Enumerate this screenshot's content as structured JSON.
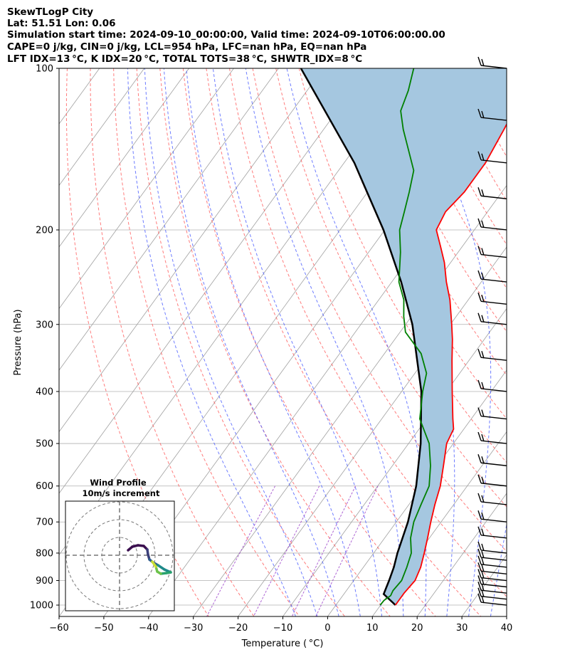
{
  "header": {
    "line1": "SkewTLogP City",
    "line2": "Lat: 51.51   Lon: 0.06",
    "line3": "Simulation start time: 2024-09-10_00:00:00, Valid time: 2024-09-10T06:00:00.00",
    "line4": "CAPE=0 j/kg, CIN=0 j/kg, LCL=954 hPa, LFC=nan hPa, EQ=nan hPa",
    "line5": "LFT IDX=13 °C, K IDX=20 °C, TOTAL TOTS=38 °C, SHWTR_IDX=8 °C"
  },
  "colors": {
    "temperature": "#ff0000",
    "dewpoint": "#008000",
    "parcel": "#000000",
    "cin_fill": "#a5c7e0",
    "dry_adiabat": "#ff5050",
    "moist_adiabat": "#4a5cff",
    "mixing_ratio": "#9a3fc9",
    "isotherm": "#a0a0a0",
    "grid": "#b0b0b0"
  },
  "chart_data": {
    "type": "line",
    "xlabel": "Temperature ( °C)",
    "ylabel": "Pressure (hPa)",
    "xlim": [
      -60,
      40
    ],
    "ylim": [
      1050,
      100
    ],
    "yscale": "log",
    "skew": true,
    "x_ticks": [
      "−60",
      "−50",
      "−40",
      "−30",
      "−20",
      "−10",
      "0",
      "10",
      "20",
      "30",
      "40"
    ],
    "x_tick_values": [
      -60,
      -50,
      -40,
      -30,
      -20,
      -10,
      0,
      10,
      20,
      30,
      40
    ],
    "y_ticks": [
      "100",
      "200",
      "300",
      "400",
      "500",
      "600",
      "700",
      "800",
      "900",
      "1000"
    ],
    "y_tick_values": [
      100,
      200,
      300,
      400,
      500,
      600,
      700,
      800,
      900,
      1000
    ],
    "series": [
      {
        "key": "temperature",
        "points": [
          [
            1000,
            13.3
          ],
          [
            950,
            13.3
          ],
          [
            900,
            13.7
          ],
          [
            850,
            12.8
          ],
          [
            800,
            11.3
          ],
          [
            750,
            9.6
          ],
          [
            700,
            7.7
          ],
          [
            650,
            5.8
          ],
          [
            600,
            4.0
          ],
          [
            550,
            1.4
          ],
          [
            500,
            -1.5
          ],
          [
            470,
            -2.3
          ],
          [
            450,
            -4.1
          ],
          [
            400,
            -8.7
          ],
          [
            350,
            -13.8
          ],
          [
            320,
            -17.1
          ],
          [
            300,
            -19.7
          ],
          [
            270,
            -24.1
          ],
          [
            250,
            -27.8
          ],
          [
            230,
            -31.4
          ],
          [
            215,
            -34.8
          ],
          [
            200,
            -38.5
          ],
          [
            185,
            -39.4
          ],
          [
            170,
            -38.4
          ],
          [
            150,
            -38.4
          ],
          [
            130,
            -39.7
          ],
          [
            115,
            -41.0
          ],
          [
            100,
            -43.8
          ]
        ]
      },
      {
        "key": "dewpoint",
        "points": [
          [
            1000,
            9.9
          ],
          [
            980,
            10.0
          ],
          [
            960,
            10.7
          ],
          [
            940,
            10.4
          ],
          [
            900,
            10.7
          ],
          [
            850,
            9.7
          ],
          [
            800,
            8.4
          ],
          [
            750,
            5.8
          ],
          [
            700,
            3.9
          ],
          [
            650,
            2.7
          ],
          [
            600,
            1.5
          ],
          [
            550,
            -1.5
          ],
          [
            500,
            -5.4
          ],
          [
            450,
            -11.5
          ],
          [
            400,
            -15.3
          ],
          [
            370,
            -17.4
          ],
          [
            340,
            -21.8
          ],
          [
            310,
            -28.8
          ],
          [
            290,
            -31.7
          ],
          [
            270,
            -34.4
          ],
          [
            250,
            -38.4
          ],
          [
            220,
            -42.9
          ],
          [
            200,
            -46.7
          ],
          [
            185,
            -48.6
          ],
          [
            170,
            -50.7
          ],
          [
            155,
            -53.2
          ],
          [
            140,
            -58.4
          ],
          [
            130,
            -62.2
          ],
          [
            120,
            -65.8
          ],
          [
            110,
            -67.4
          ],
          [
            100,
            -69.8
          ]
        ]
      },
      {
        "key": "parcel",
        "points": [
          [
            1000,
            13.3
          ],
          [
            954,
            8.9
          ],
          [
            900,
            7.9
          ],
          [
            850,
            6.8
          ],
          [
            800,
            5.3
          ],
          [
            700,
            2.6
          ],
          [
            600,
            -1.4
          ],
          [
            500,
            -7.3
          ],
          [
            400,
            -15.6
          ],
          [
            300,
            -28.5
          ],
          [
            250,
            -37.9
          ],
          [
            200,
            -50.3
          ],
          [
            150,
            -67.7
          ],
          [
            100,
            -95.0
          ]
        ]
      }
    ],
    "wind_barbs_pressure": [
      1000,
      975,
      950,
      925,
      900,
      875,
      850,
      825,
      800,
      750,
      700,
      650,
      600,
      550,
      500,
      450,
      400,
      350,
      300,
      275,
      250,
      225,
      200,
      175,
      150,
      125,
      100
    ],
    "hodograph": {
      "title": "Wind Profile",
      "subtitle": "10m/s increment"
    }
  }
}
